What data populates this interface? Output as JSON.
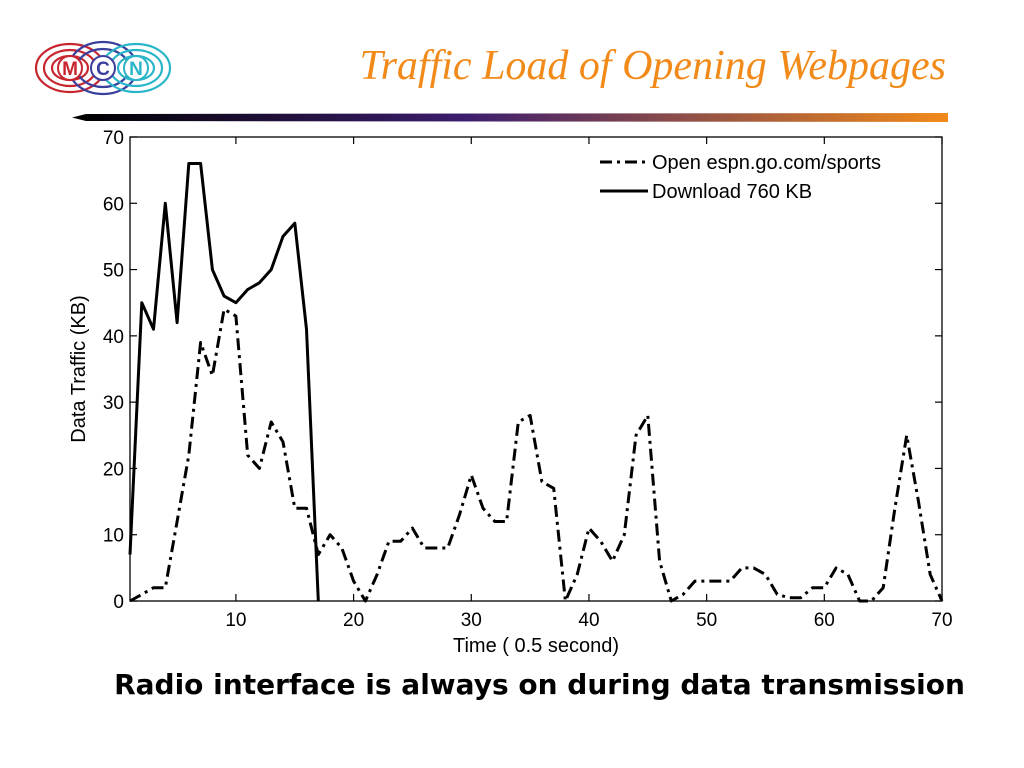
{
  "slide": {
    "title": "Traffic Load of Opening Webpages",
    "caption": "Radio interface is always on during data transmission",
    "logo_letters": [
      "M",
      "C",
      "N"
    ]
  },
  "colors": {
    "title": "#f28a1a",
    "logo_m": "#c8262f",
    "logo_c": "#3a3f9e",
    "logo_n": "#2ab5c8",
    "rule_start": "#000000",
    "rule_mid": "#3c1d6e",
    "rule_end": "#f28a1a"
  },
  "chart_data": {
    "type": "line",
    "xlabel": "Time ( 0.5 second)",
    "ylabel": "Data Traffic (KB)",
    "xlim": [
      1,
      70
    ],
    "ylim": [
      0,
      70
    ],
    "xticks": [
      10,
      20,
      30,
      40,
      50,
      60,
      70
    ],
    "yticks": [
      0,
      10,
      20,
      30,
      40,
      50,
      60,
      70
    ],
    "grid": false,
    "legend_position": "top-right",
    "series": [
      {
        "name": "Open espn.go.com/sports",
        "style": "dash-dot",
        "x": [
          1,
          2,
          3,
          4,
          5,
          6,
          7,
          8,
          9,
          10,
          11,
          12,
          13,
          14,
          15,
          16,
          17,
          18,
          19,
          20,
          21,
          22,
          23,
          24,
          25,
          26,
          27,
          28,
          29,
          30,
          31,
          32,
          33,
          34,
          35,
          36,
          37,
          38,
          39,
          40,
          41,
          42,
          43,
          44,
          45,
          46,
          47,
          48,
          49,
          50,
          51,
          52,
          53,
          54,
          55,
          56,
          57,
          58,
          59,
          60,
          61,
          62,
          63,
          64,
          65,
          66,
          67,
          68,
          69,
          70
        ],
        "y": [
          0,
          1,
          2,
          2,
          12,
          22,
          39,
          34,
          44,
          43,
          22,
          20,
          27,
          24,
          14,
          14,
          7,
          10,
          8,
          3,
          0,
          4,
          9,
          9,
          11,
          8,
          8,
          8,
          13,
          19,
          14,
          12,
          12,
          27,
          28,
          18,
          17,
          0,
          4,
          11,
          9,
          6,
          10,
          25,
          28,
          6,
          0,
          1,
          3,
          3,
          3,
          3,
          5,
          5,
          4,
          1,
          0.5,
          0.5,
          2,
          2,
          5,
          4,
          0,
          0,
          2,
          14,
          25,
          15,
          4,
          0
        ]
      },
      {
        "name": "Download 760 KB",
        "style": "solid",
        "x": [
          1,
          2,
          3,
          4,
          5,
          6,
          7,
          8,
          9,
          10,
          11,
          12,
          13,
          14,
          15,
          16,
          17
        ],
        "y": [
          7,
          45,
          41,
          60,
          42,
          66,
          66,
          50,
          46,
          45,
          47,
          48,
          50,
          55,
          57,
          41,
          0
        ]
      }
    ]
  }
}
